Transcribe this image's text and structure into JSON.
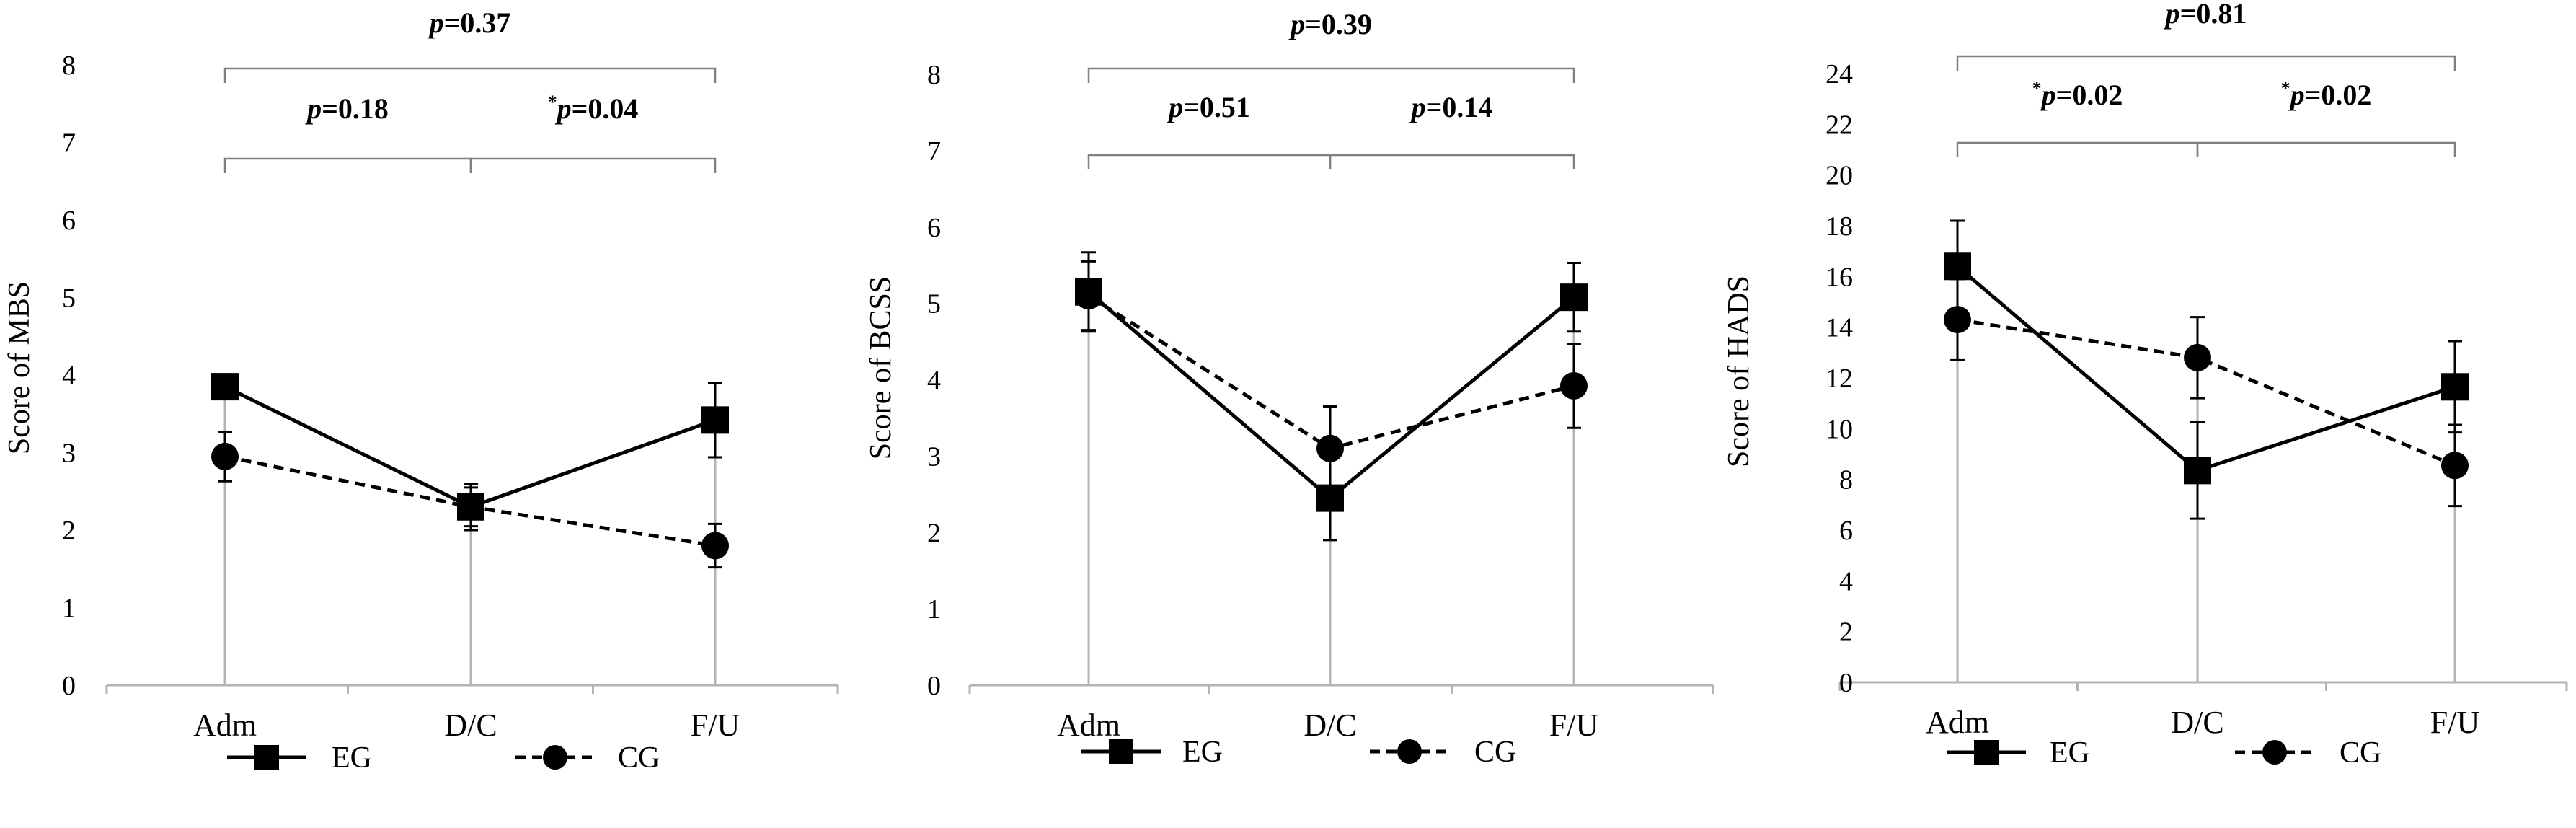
{
  "chart_data": [
    {
      "type": "line",
      "id": "mbs",
      "ylabel": "Score of MBS",
      "categories": [
        "Adm",
        "D/C",
        "F/U"
      ],
      "ylim": [
        0,
        8
      ],
      "yticks": [
        0,
        1,
        2,
        3,
        4,
        5,
        6,
        7,
        8
      ],
      "series": [
        {
          "name": "EG",
          "values": [
            3.85,
            2.3,
            3.42
          ],
          "err": [
            0.12,
            0.3,
            0.48
          ]
        },
        {
          "name": "CG",
          "values": [
            2.95,
            2.3,
            1.8
          ],
          "err": [
            0.32,
            0.25,
            0.28
          ]
        }
      ],
      "comparisons": [
        {
          "star": "",
          "label": "p",
          "value": "=0.37",
          "from": 0,
          "to": 2
        },
        {
          "star": "",
          "label": "p",
          "value": "=0.18",
          "from": 0,
          "to": 1
        },
        {
          "star": "*",
          "label": "p",
          "value": "=0.04",
          "from": 1,
          "to": 2
        }
      ],
      "legend": [
        "EG",
        "CG"
      ]
    },
    {
      "type": "line",
      "id": "bcss",
      "ylabel": "Score of BCSS",
      "categories": [
        "Adm",
        "D/C",
        "F/U"
      ],
      "ylim": [
        0,
        8
      ],
      "yticks": [
        0,
        1,
        2,
        3,
        4,
        5,
        6,
        7,
        8
      ],
      "series": [
        {
          "name": "EG",
          "values": [
            5.15,
            2.45,
            5.08
          ],
          "err": [
            0.52,
            0.55,
            0.45
          ]
        },
        {
          "name": "CG",
          "values": [
            5.1,
            3.1,
            3.92
          ],
          "err": [
            0.45,
            0.55,
            0.55
          ]
        }
      ],
      "comparisons": [
        {
          "star": "",
          "label": "p",
          "value": "=0.39",
          "from": 0,
          "to": 2
        },
        {
          "star": "",
          "label": "p",
          "value": "=0.51",
          "from": 0,
          "to": 1
        },
        {
          "star": "",
          "label": "p",
          "value": "=0.14",
          "from": 1,
          "to": 2
        }
      ],
      "legend": [
        "EG",
        "CG"
      ]
    },
    {
      "type": "line",
      "id": "hads",
      "ylabel": "Score of HADS",
      "categories": [
        "Adm",
        "D/C",
        "F/U"
      ],
      "ylim": [
        0,
        24
      ],
      "yticks": [
        0,
        2,
        4,
        6,
        8,
        10,
        12,
        14,
        16,
        18,
        20,
        22,
        24
      ],
      "series": [
        {
          "name": "EG",
          "values": [
            16.4,
            8.35,
            11.65
          ],
          "err": [
            1.8,
            1.9,
            1.8
          ]
        },
        {
          "name": "CG",
          "values": [
            14.3,
            12.8,
            8.55
          ],
          "err": [
            1.6,
            1.6,
            1.6
          ]
        }
      ],
      "comparisons": [
        {
          "star": "",
          "label": "p",
          "value": "=0.81",
          "from": 0,
          "to": 2
        },
        {
          "star": "*",
          "label": "p",
          "value": "=0.02",
          "from": 0,
          "to": 1
        },
        {
          "star": "*",
          "label": "p",
          "value": "=0.02",
          "from": 1,
          "to": 2
        }
      ],
      "legend": [
        "EG",
        "CG"
      ]
    }
  ]
}
